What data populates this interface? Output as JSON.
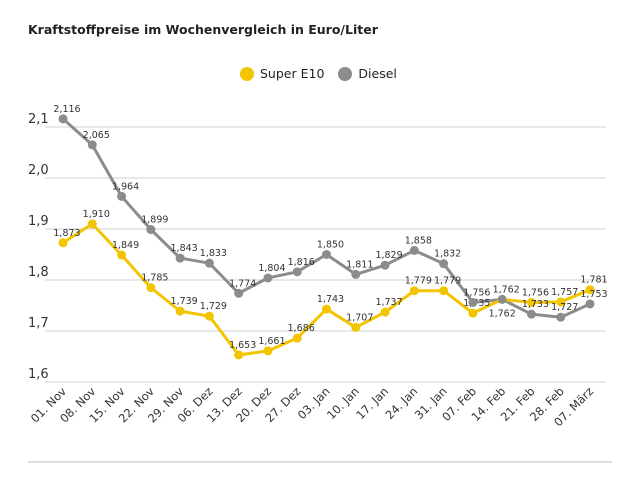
{
  "chart_data": {
    "type": "line",
    "title": "Kraftstoffpreise im Wochenvergleich in Euro/Liter",
    "categories": [
      "01. Nov",
      "08. Nov",
      "15. Nov",
      "22. Nov",
      "29. Nov",
      "06. Dez",
      "13. Dez",
      "20. Dez",
      "27. Dez",
      "03. Jan",
      "10. Jan",
      "17. Jan",
      "24. Jan",
      "31. Jan",
      "07. Feb",
      "14. Feb",
      "21. Feb",
      "28. Feb",
      "07. März"
    ],
    "series": [
      {
        "name": "Super E10",
        "color": "#f2c500",
        "values": [
          1.873,
          1.91,
          1.849,
          1.785,
          1.739,
          1.729,
          1.653,
          1.661,
          1.686,
          1.743,
          1.707,
          1.737,
          1.779,
          1.779,
          1.735,
          1.762,
          1.756,
          1.757,
          1.781
        ]
      },
      {
        "name": "Diesel",
        "color": "#8c8c8c",
        "values": [
          2.116,
          2.065,
          1.964,
          1.899,
          1.843,
          1.833,
          1.774,
          1.804,
          1.816,
          1.85,
          1.811,
          1.829,
          1.858,
          1.832,
          1.756,
          1.762,
          1.733,
          1.727,
          1.753
        ]
      }
    ],
    "yticks": [
      "1,6",
      "1,7",
      "1,8",
      "1,9",
      "2,0",
      "2,1"
    ],
    "ylim": [
      1.6,
      2.1
    ],
    "grid": true,
    "legend": "top-center",
    "xlabel": "",
    "ylabel": ""
  }
}
